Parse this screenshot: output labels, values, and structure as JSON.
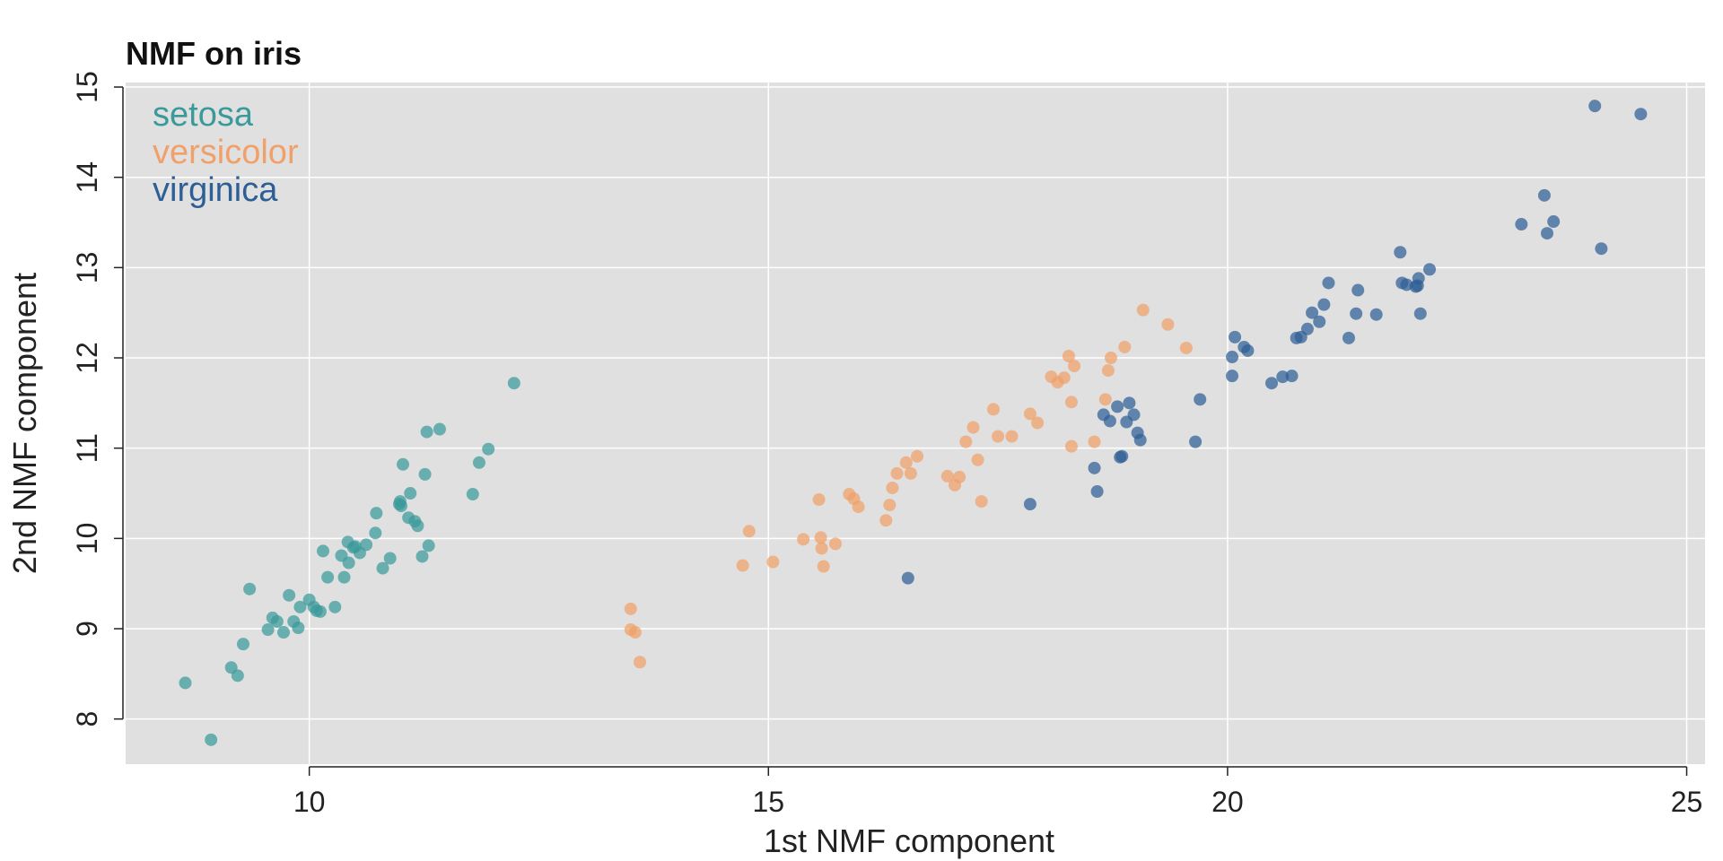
{
  "chart_data": {
    "type": "scatter",
    "title": "NMF on iris",
    "xlabel": "1st NMF component",
    "ylabel": "2nd NMF component",
    "xlim": [
      8,
      25.2
    ],
    "ylim": [
      7.5,
      15.05
    ],
    "xticks": [
      10,
      15,
      20,
      25
    ],
    "yticks": [
      8,
      9,
      10,
      11,
      12,
      13,
      14,
      15
    ],
    "xtick_labels": [
      "10",
      "15",
      "20",
      "25"
    ],
    "ytick_labels": [
      "8",
      "9",
      "10",
      "11",
      "12",
      "13",
      "14",
      "15"
    ],
    "grid": true,
    "background": "#e0e0e0",
    "legend_position": "top-left",
    "series": [
      {
        "name": "setosa",
        "color": "#3a9a9a",
        "points": [
          [
            8.65,
            8.4
          ],
          [
            8.93,
            7.77
          ],
          [
            9.15,
            8.57
          ],
          [
            9.22,
            8.48
          ],
          [
            9.28,
            8.83
          ],
          [
            9.35,
            9.44
          ],
          [
            9.55,
            8.99
          ],
          [
            9.6,
            9.12
          ],
          [
            9.65,
            9.08
          ],
          [
            9.72,
            8.96
          ],
          [
            9.78,
            9.37
          ],
          [
            9.83,
            9.08
          ],
          [
            9.88,
            9.01
          ],
          [
            9.9,
            9.24
          ],
          [
            10.0,
            9.32
          ],
          [
            10.05,
            9.24
          ],
          [
            10.08,
            9.2
          ],
          [
            10.12,
            9.19
          ],
          [
            10.15,
            9.86
          ],
          [
            10.2,
            9.57
          ],
          [
            10.28,
            9.24
          ],
          [
            10.35,
            9.81
          ],
          [
            10.38,
            9.57
          ],
          [
            10.43,
            9.73
          ],
          [
            10.42,
            9.96
          ],
          [
            10.48,
            9.9
          ],
          [
            10.5,
            9.91
          ],
          [
            10.55,
            9.84
          ],
          [
            10.62,
            9.93
          ],
          [
            10.72,
            10.06
          ],
          [
            10.73,
            10.28
          ],
          [
            10.8,
            9.67
          ],
          [
            10.88,
            9.78
          ],
          [
            10.98,
            10.38
          ],
          [
            10.99,
            10.41
          ],
          [
            11.0,
            10.36
          ],
          [
            11.02,
            10.82
          ],
          [
            11.08,
            10.23
          ],
          [
            11.1,
            10.5
          ],
          [
            11.15,
            10.19
          ],
          [
            11.18,
            10.14
          ],
          [
            11.23,
            9.8
          ],
          [
            11.26,
            10.71
          ],
          [
            11.28,
            11.18
          ],
          [
            11.3,
            9.92
          ],
          [
            11.42,
            11.21
          ],
          [
            11.78,
            10.49
          ],
          [
            11.85,
            10.84
          ],
          [
            11.95,
            10.99
          ],
          [
            12.23,
            11.72
          ]
        ]
      },
      {
        "name": "versicolor",
        "color": "#f0a068",
        "points": [
          [
            13.5,
            9.22
          ],
          [
            13.5,
            8.99
          ],
          [
            13.55,
            8.96
          ],
          [
            13.6,
            8.63
          ],
          [
            14.72,
            9.7
          ],
          [
            14.79,
            10.08
          ],
          [
            15.05,
            9.74
          ],
          [
            15.38,
            9.99
          ],
          [
            15.55,
            10.43
          ],
          [
            15.57,
            10.01
          ],
          [
            15.58,
            9.89
          ],
          [
            15.6,
            9.69
          ],
          [
            15.73,
            9.94
          ],
          [
            15.88,
            10.49
          ],
          [
            15.93,
            10.44
          ],
          [
            15.98,
            10.35
          ],
          [
            16.28,
            10.2
          ],
          [
            16.32,
            10.37
          ],
          [
            16.35,
            10.56
          ],
          [
            16.4,
            10.72
          ],
          [
            16.5,
            10.84
          ],
          [
            16.55,
            10.72
          ],
          [
            16.62,
            10.91
          ],
          [
            16.95,
            10.69
          ],
          [
            17.03,
            10.59
          ],
          [
            17.08,
            10.68
          ],
          [
            17.15,
            11.07
          ],
          [
            17.23,
            11.23
          ],
          [
            17.28,
            10.87
          ],
          [
            17.32,
            10.41
          ],
          [
            17.45,
            11.43
          ],
          [
            17.5,
            11.13
          ],
          [
            17.65,
            11.13
          ],
          [
            17.85,
            11.38
          ],
          [
            17.93,
            11.28
          ],
          [
            18.08,
            11.79
          ],
          [
            18.15,
            11.73
          ],
          [
            18.22,
            11.78
          ],
          [
            18.27,
            12.02
          ],
          [
            18.3,
            11.51
          ],
          [
            18.3,
            11.02
          ],
          [
            18.33,
            11.91
          ],
          [
            18.55,
            11.07
          ],
          [
            18.67,
            11.54
          ],
          [
            18.7,
            11.86
          ],
          [
            18.73,
            12.0
          ],
          [
            18.88,
            12.12
          ],
          [
            19.08,
            12.53
          ],
          [
            19.35,
            12.37
          ],
          [
            19.55,
            12.11
          ]
        ]
      },
      {
        "name": "virginica",
        "color": "#2e5e96",
        "points": [
          [
            16.52,
            9.56
          ],
          [
            17.85,
            10.38
          ],
          [
            18.55,
            10.78
          ],
          [
            18.58,
            10.52
          ],
          [
            18.65,
            11.37
          ],
          [
            18.72,
            11.3
          ],
          [
            18.8,
            11.46
          ],
          [
            18.83,
            10.9
          ],
          [
            18.85,
            10.91
          ],
          [
            18.9,
            11.29
          ],
          [
            18.93,
            11.5
          ],
          [
            18.98,
            11.37
          ],
          [
            19.02,
            11.17
          ],
          [
            19.05,
            11.09
          ],
          [
            19.65,
            11.07
          ],
          [
            19.7,
            11.54
          ],
          [
            20.05,
            11.8
          ],
          [
            20.05,
            12.01
          ],
          [
            20.08,
            12.23
          ],
          [
            20.18,
            12.12
          ],
          [
            20.22,
            12.08
          ],
          [
            20.48,
            11.72
          ],
          [
            20.6,
            11.79
          ],
          [
            20.7,
            11.8
          ],
          [
            20.75,
            12.22
          ],
          [
            20.8,
            12.23
          ],
          [
            20.87,
            12.32
          ],
          [
            20.92,
            12.5
          ],
          [
            21.0,
            12.4
          ],
          [
            21.05,
            12.59
          ],
          [
            21.1,
            12.83
          ],
          [
            21.32,
            12.22
          ],
          [
            21.4,
            12.49
          ],
          [
            21.42,
            12.75
          ],
          [
            21.62,
            12.48
          ],
          [
            21.88,
            13.17
          ],
          [
            21.9,
            12.83
          ],
          [
            21.95,
            12.81
          ],
          [
            22.05,
            12.79
          ],
          [
            22.07,
            12.8
          ],
          [
            22.08,
            12.88
          ],
          [
            22.1,
            12.49
          ],
          [
            22.2,
            12.98
          ],
          [
            23.2,
            13.48
          ],
          [
            23.45,
            13.8
          ],
          [
            23.48,
            13.38
          ],
          [
            23.55,
            13.51
          ],
          [
            24.0,
            14.79
          ],
          [
            24.07,
            13.21
          ],
          [
            24.5,
            14.7
          ]
        ]
      }
    ]
  }
}
